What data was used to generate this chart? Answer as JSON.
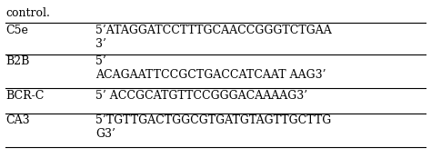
{
  "header_text": "control.",
  "rows": [
    {
      "label": "C5e",
      "sequence": "5’ATAGGATCCTTTGCAACCGGGTCTGAA\n3’"
    },
    {
      "label": "B2B",
      "sequence": "5’\nACAGAATTCCGCTGACCATCAAT AAG3’"
    },
    {
      "label": "BCR-C",
      "sequence": "5’ ACCGCATGTTCCGGGACAAAAG3’"
    },
    {
      "label": "CA3",
      "sequence": "5’TGTTGACTGGCGTGATGTAGTTGCTTG\nG3’"
    }
  ],
  "bg_color": "#ffffff",
  "text_color": "#000000",
  "line_color": "#000000",
  "font_size": 9,
  "label_font_size": 9,
  "header_font_size": 9
}
